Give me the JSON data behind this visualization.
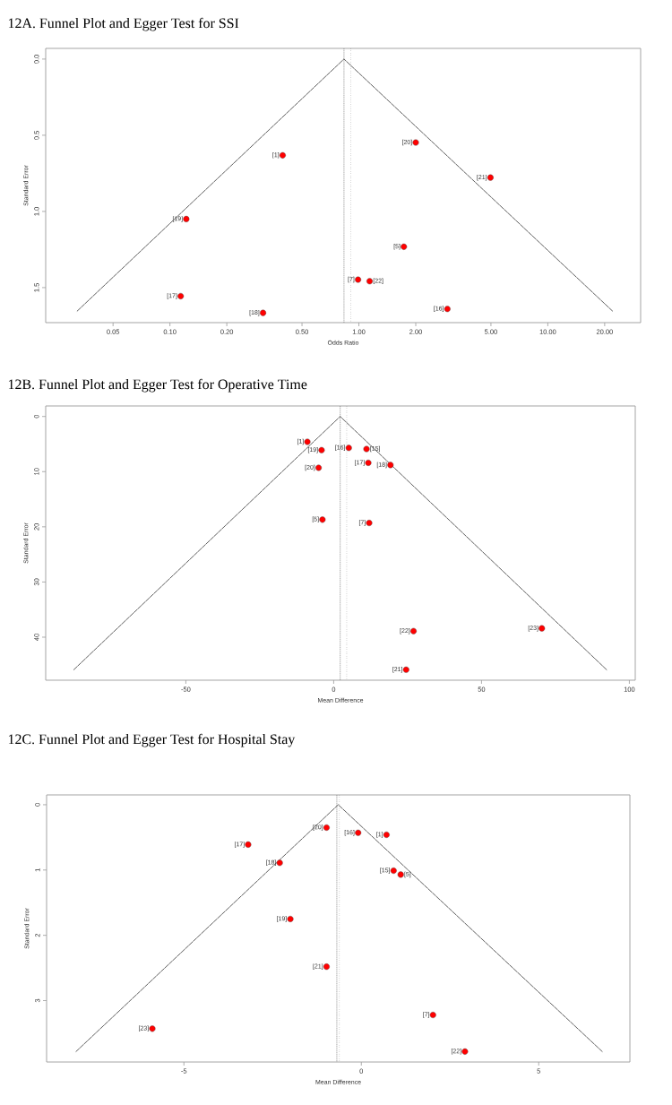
{
  "chart_data": [
    {
      "type": "scatter",
      "title": "12A. Funnel Plot and Egger Test for SSI",
      "xlabel": "Odds Ratio",
      "ylabel": "Standard Error",
      "log": "x",
      "xlim": [
        0.022,
        31
      ],
      "ylim": [
        1.73,
        -0.07
      ],
      "xticks": [
        0.05,
        {
          "value": 0.1,
          "label": "0.10"
        },
        {
          "value": 0.2,
          "label": "0.20"
        },
        {
          "value": 0.5,
          "label": "0.50"
        },
        {
          "value": 1,
          "label": "1.00"
        },
        {
          "value": 2,
          "label": "2.00"
        },
        {
          "value": 5,
          "label": "5.00"
        },
        {
          "value": 10,
          "label": "10.00"
        },
        {
          "value": 20,
          "label": "20.00"
        }
      ],
      "yticks": [
        {
          "value": 0,
          "label": "0.0"
        },
        0.5,
        {
          "value": 1,
          "label": "1.0"
        },
        1.5
      ],
      "series": [
        {
          "marker": "circle",
          "color": "#ff0000",
          "x": [
            0.395,
            0.122,
            0.114,
            0.311,
            2.0,
            4.97,
            1.73,
            0.99,
            1.14,
            2.94
          ],
          "values": [
            0.632,
            1.05,
            1.556,
            1.666,
            0.548,
            0.778,
            1.232,
            1.448,
            1.458,
            1.64
          ]
        },
        {
          "type": "line",
          "marker": "none",
          "line_style": "dashed",
          "color": "#333333",
          "x": [
            0.0323,
            0.834,
            22.0
          ],
          "values": [
            1.654,
            0,
            1.654
          ]
        }
      ],
      "ref_lines": [
        {
          "axis": "x",
          "value": 0.834,
          "line_style": "dashed",
          "color": "#555555"
        },
        {
          "axis": "x",
          "value": 0.906,
          "line_style": "dotted",
          "color": "#555555"
        }
      ],
      "annotations": [
        {
          "text": "[1]",
          "x": 0.395,
          "y": 0.632
        },
        {
          "text": "[19]",
          "x": 0.122,
          "y": 1.05
        },
        {
          "text": "[17]",
          "x": 0.114,
          "y": 1.556
        },
        {
          "text": "[18]",
          "x": 0.311,
          "y": 1.666
        },
        {
          "text": "[20]",
          "x": 2.0,
          "y": 0.548
        },
        {
          "text": "[21]",
          "x": 4.97,
          "y": 0.778
        },
        {
          "text": "[5]",
          "x": 1.73,
          "y": 1.232
        },
        {
          "text": "[7]",
          "x": 0.99,
          "y": 1.448
        },
        {
          "text": "[22]",
          "x": 1.14,
          "y": 1.458
        },
        {
          "text": "[16]",
          "x": 2.94,
          "y": 1.64
        }
      ]
    },
    {
      "type": "scatter",
      "title": "12B. Funnel Plot and Egger Test for Operative Time",
      "xlabel": "Mean Difference",
      "ylabel": "Standard Error",
      "xlim": [
        -97.4,
        102
      ],
      "ylim": [
        47.8,
        -1.9
      ],
      "xticks": [
        -50,
        0,
        50,
        100
      ],
      "yticks": [
        0,
        10,
        20,
        30,
        40
      ],
      "series": [
        {
          "marker": "circle",
          "color": "#ff0000",
          "x": [
            -8.9,
            -4.1,
            -5.1,
            5.1,
            11.1,
            11.7,
            19.2,
            -3.8,
            12.0,
            27.0,
            70.4,
            24.5
          ],
          "values": [
            4.6,
            6.1,
            9.3,
            5.7,
            5.9,
            8.4,
            8.8,
            18.7,
            19.3,
            38.9,
            38.4,
            45.9
          ]
        },
        {
          "type": "line",
          "marker": "none",
          "line_style": "dashed",
          "color": "#333333",
          "x": [
            -87.9,
            2.2,
            92.3
          ],
          "values": [
            45.9,
            0,
            45.9
          ]
        }
      ],
      "ref_lines": [
        {
          "axis": "x",
          "value": 2.2,
          "line_style": "dashed",
          "color": "#555555"
        },
        {
          "axis": "x",
          "value": 4.4,
          "line_style": "dotted",
          "color": "#555555"
        }
      ],
      "annotations": [
        {
          "text": "[1]",
          "x": -8.9,
          "y": 4.6
        },
        {
          "text": "[19]",
          "x": -4.1,
          "y": 6.1
        },
        {
          "text": "[20]",
          "x": -5.1,
          "y": 9.3
        },
        {
          "text": "[16]",
          "x": 5.1,
          "y": 5.7
        },
        {
          "text": "[15]",
          "x": 11.1,
          "y": 5.9
        },
        {
          "text": "[17]",
          "x": 11.7,
          "y": 8.4
        },
        {
          "text": "[18]",
          "x": 19.2,
          "y": 8.8
        },
        {
          "text": "[5]",
          "x": -3.8,
          "y": 18.7
        },
        {
          "text": "[7]",
          "x": 12.0,
          "y": 19.3
        },
        {
          "text": "[22]",
          "x": 27.0,
          "y": 38.9
        },
        {
          "text": "[23]",
          "x": 70.4,
          "y": 38.4
        },
        {
          "text": "[21]",
          "x": 24.5,
          "y": 45.9
        }
      ]
    },
    {
      "type": "scatter",
      "title": "12C. Funnel Plot and Egger Test for Hospital Stay",
      "xlabel": "Mean Difference",
      "ylabel": "Standard Error",
      "xlim": [
        -8.87,
        7.57
      ],
      "ylim": [
        3.94,
        -0.15
      ],
      "xticks": [
        -5,
        0,
        5
      ],
      "yticks": [
        0,
        1,
        2,
        3
      ],
      "series": [
        {
          "marker": "circle",
          "color": "#ff0000",
          "x": [
            -0.98,
            -3.19,
            -2.3,
            -2.0,
            -0.98,
            -5.89,
            -0.09,
            0.71,
            0.91,
            1.11,
            2.02,
            2.92
          ],
          "values": [
            0.35,
            0.61,
            0.89,
            1.75,
            2.48,
            3.43,
            0.43,
            0.46,
            1.01,
            1.07,
            3.22,
            3.78
          ]
        },
        {
          "type": "line",
          "marker": "none",
          "line_style": "dashed",
          "color": "#333333",
          "x": [
            -8.04,
            -0.65,
            6.79
          ],
          "values": [
            3.78,
            0,
            3.78
          ]
        }
      ],
      "ref_lines": [
        {
          "axis": "x",
          "value": -0.69,
          "line_style": "dashed",
          "color": "#555555"
        },
        {
          "axis": "x",
          "value": -0.62,
          "line_style": "dotted",
          "color": "#555555"
        }
      ],
      "annotations": [
        {
          "text": "[20]",
          "x": -0.98,
          "y": 0.35
        },
        {
          "text": "[17]",
          "x": -3.19,
          "y": 0.61
        },
        {
          "text": "[18]",
          "x": -2.3,
          "y": 0.89
        },
        {
          "text": "[19]",
          "x": -2.0,
          "y": 1.75
        },
        {
          "text": "[21]",
          "x": -0.98,
          "y": 2.48
        },
        {
          "text": "[23]",
          "x": -5.89,
          "y": 3.43
        },
        {
          "text": "[16]",
          "x": -0.09,
          "y": 0.43
        },
        {
          "text": "[1]",
          "x": 0.71,
          "y": 0.46
        },
        {
          "text": "[15]",
          "x": 0.91,
          "y": 1.01
        },
        {
          "text": "[5]",
          "x": 1.11,
          "y": 1.07
        },
        {
          "text": "[7]",
          "x": 2.02,
          "y": 3.22
        },
        {
          "text": "[22]",
          "x": 2.92,
          "y": 3.78
        }
      ]
    }
  ]
}
